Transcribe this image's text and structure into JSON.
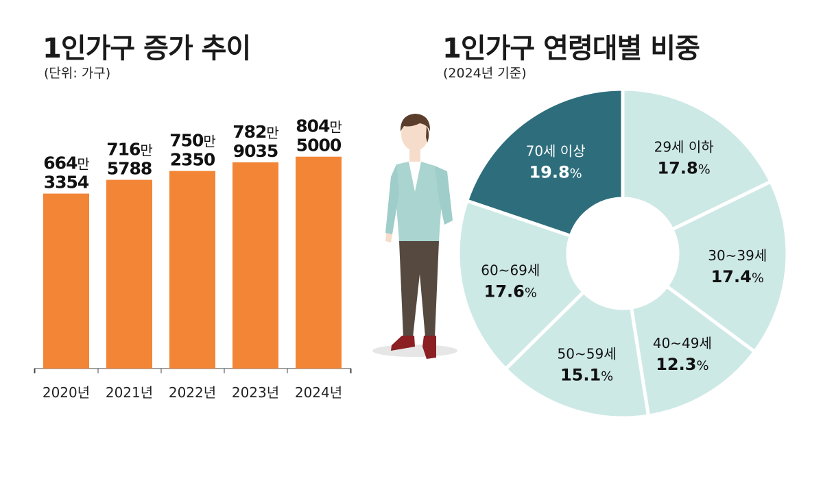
{
  "bar_chart": {
    "title": "1인가구 증가 추이",
    "subtitle": "(단위: 가구)"
  },
  "pie_chart": {
    "title": "1인가구 연령대별 비중",
    "subtitle": "(2024년 기준)"
  },
  "colors": {
    "bar": "#f28536",
    "pie_light": "#cde9e6",
    "pie_highlight": "#2e6e7c",
    "pie_border": "#ffffff",
    "text_dark": "#111111",
    "text_light": "#ffffff"
  },
  "icons": {
    "illustration": "standing-man-illustration"
  },
  "chart_data": [
    {
      "type": "bar",
      "title": "1인가구 증가 추이",
      "subtitle": "(단위: 가구)",
      "categories": [
        "2020년",
        "2021년",
        "2022년",
        "2023년",
        "2024년"
      ],
      "values": [
        6643354,
        7165788,
        7502350,
        7829035,
        8045000
      ],
      "labels": [
        {
          "top": "664만",
          "bottom": "3354"
        },
        {
          "top": "716만",
          "bottom": "5788"
        },
        {
          "top": "750만",
          "bottom": "2350"
        },
        {
          "top": "782만",
          "bottom": "9035"
        },
        {
          "top": "804만",
          "bottom": "5000"
        }
      ],
      "ylim": [
        0,
        9000000
      ],
      "grid": false,
      "color": "#f28536"
    },
    {
      "type": "pie",
      "title": "1인가구 연령대별 비중",
      "subtitle": "(2024년 기준)",
      "donut": true,
      "start": "top",
      "direction": "clockwise",
      "slices": [
        {
          "label": "29세 이하",
          "value": 17.8,
          "display": "17.8",
          "unit": "%",
          "color": "#cde9e6"
        },
        {
          "label": "30~39세",
          "value": 17.4,
          "display": "17.4",
          "unit": "%",
          "color": "#cde9e6"
        },
        {
          "label": "40~49세",
          "value": 12.3,
          "display": "12.3",
          "unit": "%",
          "color": "#cde9e6"
        },
        {
          "label": "50~59세",
          "value": 15.1,
          "display": "15.1",
          "unit": "%",
          "color": "#cde9e6"
        },
        {
          "label": "60~69세",
          "value": 17.6,
          "display": "17.6",
          "unit": "%",
          "color": "#cde9e6"
        },
        {
          "label": "70세 이상",
          "value": 19.8,
          "display": "19.8",
          "unit": "%",
          "color": "#2e6e7c",
          "highlight": true
        }
      ]
    }
  ]
}
